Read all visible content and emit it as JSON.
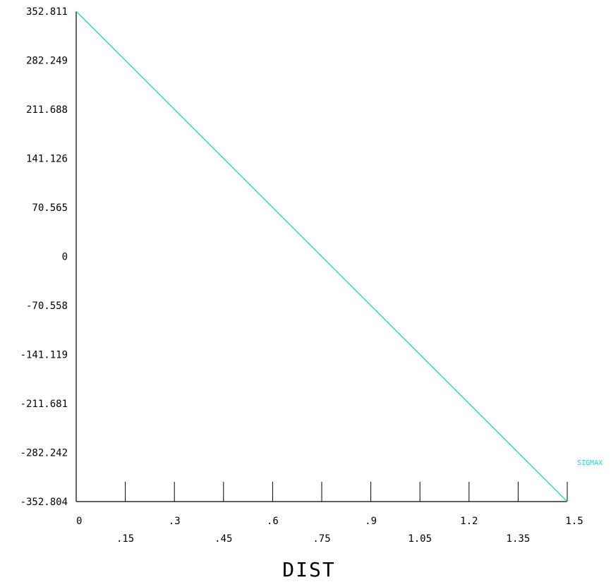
{
  "chart_data": {
    "type": "line",
    "xlabel": "DIST",
    "ylabel": "",
    "title": "",
    "xlim": [
      0,
      1.5
    ],
    "ylim": [
      -352.804,
      352.811
    ],
    "x_ticks": [
      "0",
      ".15",
      ".3",
      ".45",
      ".6",
      ".75",
      ".9",
      "1.05",
      "1.2",
      "1.35",
      "1.5"
    ],
    "y_ticks": [
      "352.811",
      "282.249",
      "211.688",
      "141.126",
      "70.565",
      "0",
      "-70.558",
      "-141.119",
      "-211.681",
      "-282.242",
      "-352.804"
    ],
    "grid": false,
    "legend_position": "right",
    "series": [
      {
        "name": "SIGMAX",
        "color": "#27d3d6",
        "x": [
          0,
          1.5
        ],
        "y": [
          352.811,
          -352.804
        ]
      }
    ]
  }
}
